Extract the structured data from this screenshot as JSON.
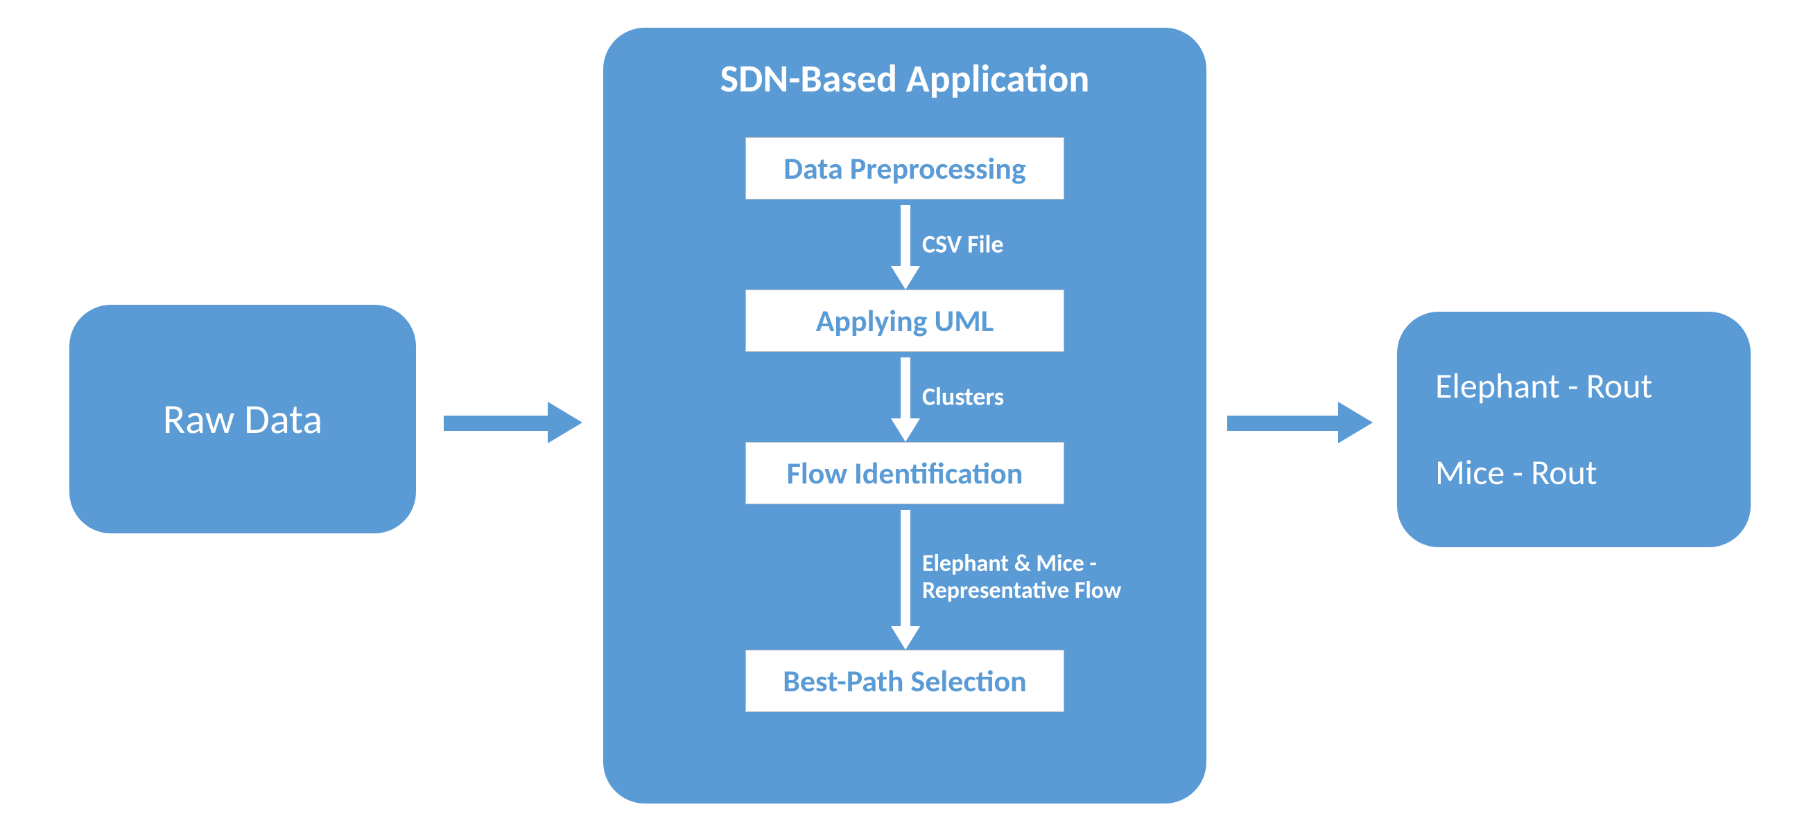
{
  "type": "flowchart",
  "background_color": "#ffffff",
  "node_fill": "#5b9bd5",
  "node_text_color": "#ffffff",
  "step_fill": "#ffffff",
  "step_text_color": "#5b9bd5",
  "arrow_color_inner": "#ffffff",
  "arrow_color_outer": "#5b9bd5",
  "title_fontsize_pt": 42,
  "label_fontsize_pt": 34,
  "left_node": {
    "label": "Raw Data"
  },
  "right_node": {
    "line1": "Elephant - Rout",
    "line2": "Mice - Rout"
  },
  "center_node": {
    "title": "SDN-Based Application",
    "steps": [
      {
        "label": "Data Preprocessing"
      },
      {
        "label": "Applying UML"
      },
      {
        "label": "Flow Identification"
      },
      {
        "label": "Best-Path Selection"
      }
    ],
    "edges": [
      {
        "label": "CSV File"
      },
      {
        "label": "Clusters"
      },
      {
        "label": "Elephant & Mice -\nRepresentative Flow"
      }
    ]
  }
}
